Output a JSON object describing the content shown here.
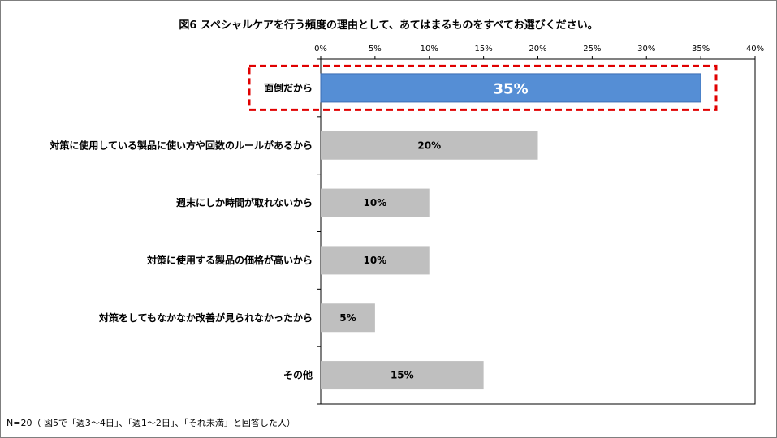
{
  "chart_data": {
    "type": "bar",
    "orientation": "horizontal",
    "title": "図6 スペシャルケアを行う頻度の理由として、あてはまるものをすべてお選びください。",
    "categories": [
      "面倒だから",
      "対策に使用している製品に使い方や回数のルールがあるから",
      "週末にしか時間が取れないから",
      "対策に使用する製品の価格が高いから",
      "対策をしてもなかなか改善が見られなかったから",
      "その他"
    ],
    "values": [
      35,
      20,
      10,
      10,
      5,
      15
    ],
    "data_labels": [
      "35%",
      "20%",
      "10%",
      "10%",
      "5%",
      "15%"
    ],
    "xlim": [
      0,
      40
    ],
    "x_ticks": [
      0,
      5,
      10,
      15,
      20,
      25,
      30,
      35,
      40
    ],
    "x_tick_labels": [
      "0%",
      "5%",
      "10%",
      "15%",
      "20%",
      "25%",
      "30%",
      "35%",
      "40%"
    ],
    "x_axis_position": "top",
    "grid": false,
    "highlight_index": 0,
    "highlight_color": "#558ed5",
    "bar_color": "#bfbfbf",
    "highlight_box_color": "#e00000",
    "note": "N=20（ 図5で「週3〜4日」、「週1〜2日」、「それ未満」と回答した人）"
  }
}
